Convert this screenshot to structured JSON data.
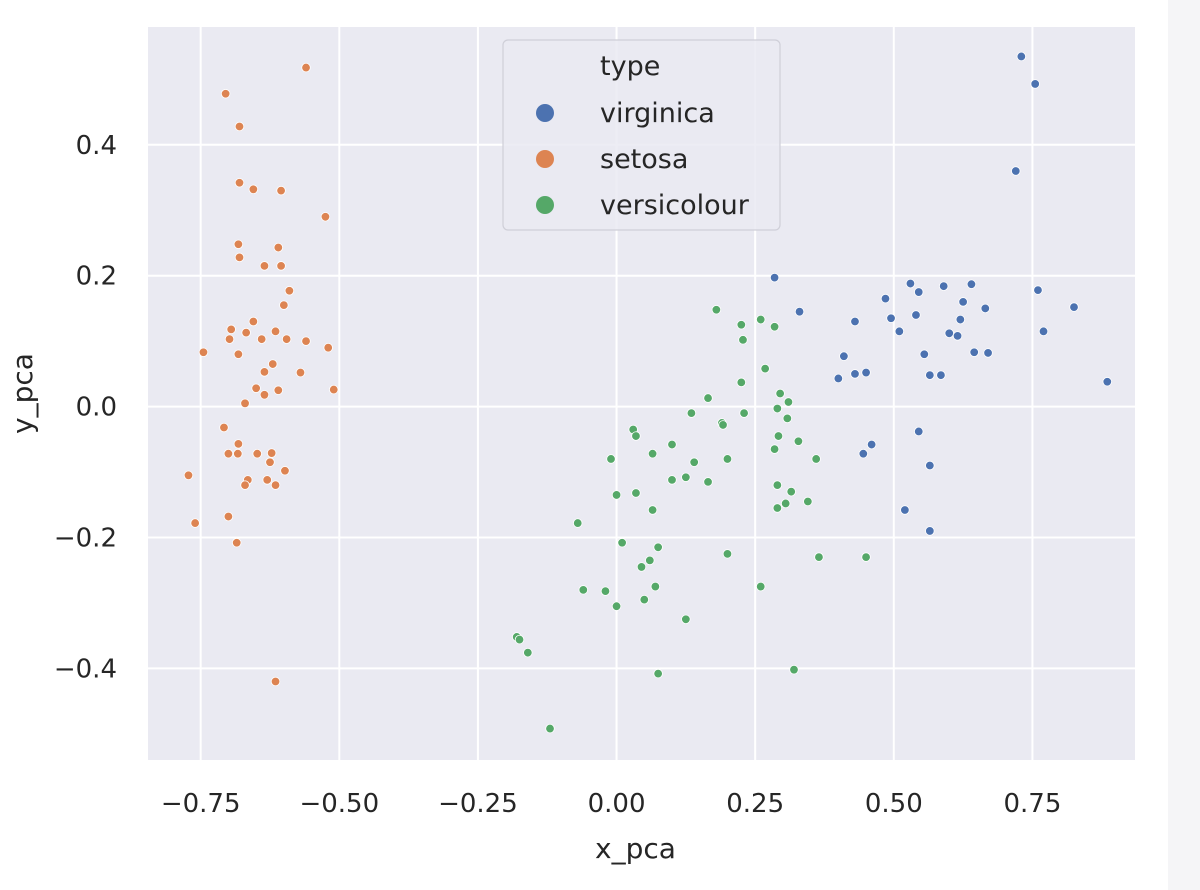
{
  "chart_data": {
    "type": "scatter",
    "title": "",
    "xlabel": "x_pca",
    "ylabel": "y_pca",
    "xlim": [
      -0.845,
      0.935
    ],
    "ylim": [
      -0.54,
      0.58
    ],
    "xticks": [
      -0.75,
      -0.5,
      -0.25,
      0.0,
      0.25,
      0.5,
      0.75
    ],
    "xtick_labels": [
      "−0.75",
      "−0.50",
      "−0.25",
      "0.00",
      "0.25",
      "0.50",
      "0.75"
    ],
    "yticks": [
      -0.4,
      -0.2,
      0.0,
      0.2,
      0.4
    ],
    "ytick_labels": [
      "−0.4",
      "−0.2",
      "0.0",
      "0.2",
      "0.4"
    ],
    "grid": true,
    "legend": {
      "title": "type",
      "placement": "upper-center",
      "entries": [
        "virginica",
        "setosa",
        "versicolour"
      ]
    },
    "series": [
      {
        "name": "virginica",
        "color": "#4c72b0",
        "points": [
          [
            0.73,
            0.535
          ],
          [
            0.755,
            0.493
          ],
          [
            0.72,
            0.36
          ],
          [
            0.285,
            0.197
          ],
          [
            0.33,
            0.145
          ],
          [
            0.53,
            0.188
          ],
          [
            0.545,
            0.175
          ],
          [
            0.59,
            0.184
          ],
          [
            0.64,
            0.187
          ],
          [
            0.76,
            0.178
          ],
          [
            0.825,
            0.152
          ],
          [
            0.485,
            0.165
          ],
          [
            0.625,
            0.16
          ],
          [
            0.665,
            0.15
          ],
          [
            0.43,
            0.13
          ],
          [
            0.495,
            0.135
          ],
          [
            0.54,
            0.14
          ],
          [
            0.62,
            0.133
          ],
          [
            0.51,
            0.115
          ],
          [
            0.77,
            0.115
          ],
          [
            0.6,
            0.112
          ],
          [
            0.615,
            0.108
          ],
          [
            0.41,
            0.077
          ],
          [
            0.555,
            0.08
          ],
          [
            0.645,
            0.083
          ],
          [
            0.67,
            0.082
          ],
          [
            0.43,
            0.05
          ],
          [
            0.45,
            0.052
          ],
          [
            0.565,
            0.048
          ],
          [
            0.585,
            0.048
          ],
          [
            0.4,
            0.043
          ],
          [
            0.885,
            0.038
          ],
          [
            0.545,
            -0.038
          ],
          [
            0.46,
            -0.058
          ],
          [
            0.445,
            -0.072
          ],
          [
            0.565,
            -0.09
          ],
          [
            0.52,
            -0.158
          ],
          [
            0.565,
            -0.19
          ]
        ]
      },
      {
        "name": "setosa",
        "color": "#dd8452",
        "points": [
          [
            -0.56,
            0.518
          ],
          [
            -0.705,
            0.478
          ],
          [
            -0.68,
            0.428
          ],
          [
            -0.68,
            0.342
          ],
          [
            -0.655,
            0.332
          ],
          [
            -0.605,
            0.33
          ],
          [
            -0.525,
            0.29
          ],
          [
            -0.682,
            0.248
          ],
          [
            -0.61,
            0.243
          ],
          [
            -0.68,
            0.228
          ],
          [
            -0.635,
            0.215
          ],
          [
            -0.605,
            0.215
          ],
          [
            -0.59,
            0.177
          ],
          [
            -0.6,
            0.155
          ],
          [
            -0.655,
            0.13
          ],
          [
            -0.695,
            0.118
          ],
          [
            -0.668,
            0.113
          ],
          [
            -0.615,
            0.115
          ],
          [
            -0.698,
            0.103
          ],
          [
            -0.64,
            0.103
          ],
          [
            -0.595,
            0.103
          ],
          [
            -0.56,
            0.1
          ],
          [
            -0.52,
            0.09
          ],
          [
            -0.745,
            0.083
          ],
          [
            -0.682,
            0.08
          ],
          [
            -0.62,
            0.065
          ],
          [
            -0.635,
            0.053
          ],
          [
            -0.57,
            0.052
          ],
          [
            -0.65,
            0.028
          ],
          [
            -0.61,
            0.025
          ],
          [
            -0.635,
            0.018
          ],
          [
            -0.51,
            0.026
          ],
          [
            -0.67,
            0.005
          ],
          [
            -0.708,
            -0.032
          ],
          [
            -0.682,
            -0.057
          ],
          [
            -0.7,
            -0.072
          ],
          [
            -0.683,
            -0.072
          ],
          [
            -0.648,
            -0.072
          ],
          [
            -0.622,
            -0.071
          ],
          [
            -0.625,
            -0.085
          ],
          [
            -0.598,
            -0.098
          ],
          [
            -0.772,
            -0.105
          ],
          [
            -0.665,
            -0.112
          ],
          [
            -0.63,
            -0.112
          ],
          [
            -0.67,
            -0.12
          ],
          [
            -0.615,
            -0.12
          ],
          [
            -0.7,
            -0.168
          ],
          [
            -0.76,
            -0.178
          ],
          [
            -0.685,
            -0.208
          ],
          [
            -0.615,
            -0.42
          ]
        ]
      },
      {
        "name": "versicolour",
        "color": "#55a868",
        "points": [
          [
            0.18,
            0.148
          ],
          [
            0.26,
            0.133
          ],
          [
            0.225,
            0.125
          ],
          [
            0.285,
            0.122
          ],
          [
            0.228,
            0.102
          ],
          [
            0.268,
            0.058
          ],
          [
            0.225,
            0.037
          ],
          [
            0.295,
            0.02
          ],
          [
            0.165,
            0.013
          ],
          [
            0.31,
            0.007
          ],
          [
            0.29,
            -0.003
          ],
          [
            0.135,
            -0.01
          ],
          [
            0.23,
            -0.01
          ],
          [
            0.308,
            -0.018
          ],
          [
            0.19,
            -0.025
          ],
          [
            0.192,
            -0.028
          ],
          [
            0.03,
            -0.035
          ],
          [
            0.035,
            -0.045
          ],
          [
            0.292,
            -0.045
          ],
          [
            0.328,
            -0.053
          ],
          [
            0.1,
            -0.058
          ],
          [
            0.285,
            -0.065
          ],
          [
            0.065,
            -0.072
          ],
          [
            -0.01,
            -0.08
          ],
          [
            0.2,
            -0.08
          ],
          [
            0.36,
            -0.08
          ],
          [
            0.14,
            -0.085
          ],
          [
            0.125,
            -0.108
          ],
          [
            0.1,
            -0.112
          ],
          [
            0.165,
            -0.115
          ],
          [
            0.29,
            -0.12
          ],
          [
            0.035,
            -0.132
          ],
          [
            0.0,
            -0.135
          ],
          [
            0.315,
            -0.13
          ],
          [
            0.305,
            -0.148
          ],
          [
            0.29,
            -0.155
          ],
          [
            0.345,
            -0.145
          ],
          [
            0.065,
            -0.158
          ],
          [
            -0.07,
            -0.178
          ],
          [
            0.01,
            -0.208
          ],
          [
            0.075,
            -0.215
          ],
          [
            0.2,
            -0.225
          ],
          [
            0.365,
            -0.23
          ],
          [
            0.45,
            -0.23
          ],
          [
            0.06,
            -0.235
          ],
          [
            0.045,
            -0.245
          ],
          [
            0.07,
            -0.275
          ],
          [
            0.26,
            -0.275
          ],
          [
            -0.06,
            -0.28
          ],
          [
            -0.02,
            -0.282
          ],
          [
            0.05,
            -0.295
          ],
          [
            0.0,
            -0.305
          ],
          [
            0.125,
            -0.325
          ],
          [
            -0.18,
            -0.352
          ],
          [
            -0.175,
            -0.356
          ],
          [
            -0.16,
            -0.376
          ],
          [
            0.32,
            -0.402
          ],
          [
            0.075,
            -0.408
          ],
          [
            -0.12,
            -0.492
          ]
        ]
      }
    ]
  }
}
